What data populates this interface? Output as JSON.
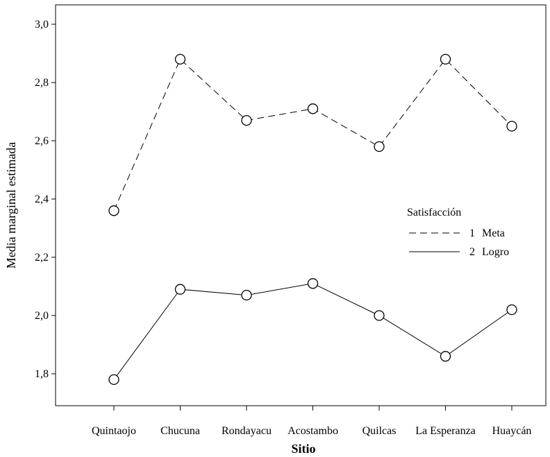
{
  "chart_data": {
    "type": "line",
    "title": "",
    "xlabel": "Sitio",
    "ylabel": "Media marginal estimada",
    "categories": [
      "Quintaojo",
      "Chucuna",
      "Rondayacu",
      "Acostambo",
      "Quilcas",
      "La Esperanza",
      "Huaycán"
    ],
    "ylim": [
      1.7,
      3.07
    ],
    "yticks": [
      {
        "value": 1.8,
        "label": "1,8"
      },
      {
        "value": 2.0,
        "label": "2,0"
      },
      {
        "value": 2.2,
        "label": "2,2"
      },
      {
        "value": 2.4,
        "label": "2,4"
      },
      {
        "value": 2.6,
        "label": "2,6"
      },
      {
        "value": 2.8,
        "label": "2,8"
      },
      {
        "value": 3.0,
        "label": "3,0"
      }
    ],
    "grid": false,
    "legend": {
      "title": "Satisfacción",
      "placement": "right",
      "entries": [
        {
          "number": "1",
          "label": "Meta"
        },
        {
          "number": "2",
          "label": "Logro"
        }
      ]
    },
    "series": [
      {
        "name": "Meta",
        "line_style": "dashed",
        "marker": "open-circle",
        "values": [
          2.36,
          2.88,
          2.67,
          2.71,
          2.58,
          2.88,
          2.65
        ]
      },
      {
        "name": "Logro",
        "line_style": "solid",
        "marker": "open-circle",
        "values": [
          1.78,
          2.09,
          2.07,
          2.11,
          2.0,
          1.86,
          2.02
        ]
      }
    ]
  }
}
